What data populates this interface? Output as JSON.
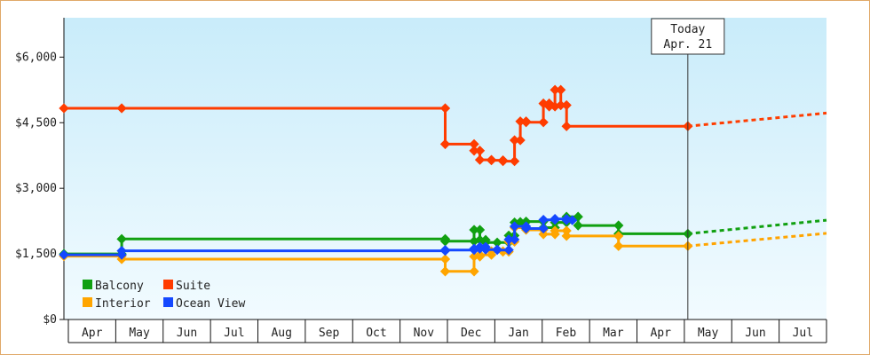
{
  "colors": {
    "background_top": "#c9ecfa",
    "background_bottom": "#f2fbff",
    "border": "#e0a868",
    "Balcony": "#11a011",
    "Suite": "#ff3c00",
    "Interior": "#ffa500",
    "Ocean View": "#1448ff"
  },
  "today": {
    "line1": "Today",
    "line2": "Apr. 21",
    "value": 2022.31
  },
  "chart_data": {
    "type": "line",
    "x_unit": "fractional year",
    "xlim": [
      2021.23,
      2022.55
    ],
    "ylim": [
      0,
      6900
    ],
    "yticks": [
      0,
      1500,
      3000,
      4500,
      6000
    ],
    "ytick_labels": [
      "$0",
      "$1,500",
      "$3,000",
      "$4,500",
      "$6,000"
    ],
    "xtick_labels": [
      "Apr",
      "May",
      "Jun",
      "Jul",
      "Aug",
      "Sep",
      "Oct",
      "Nov",
      "Dec",
      "Jan",
      "Feb",
      "Mar",
      "Apr",
      "May",
      "Jun",
      "Jul"
    ],
    "grid": false,
    "legend_position": "bottom-left",
    "step": true,
    "series": [
      {
        "name": "Balcony",
        "points": [
          [
            2021.23,
            1500
          ],
          [
            2021.33,
            1500
          ],
          [
            2021.33,
            1840
          ],
          [
            2021.89,
            1840
          ],
          [
            2021.89,
            1790
          ],
          [
            2021.94,
            1790
          ],
          [
            2021.94,
            2050
          ],
          [
            2021.95,
            2050
          ],
          [
            2021.95,
            1820
          ],
          [
            2021.96,
            1820
          ],
          [
            2021.96,
            1760
          ],
          [
            2021.98,
            1760
          ],
          [
            2021.98,
            1760
          ],
          [
            2022.0,
            1760
          ],
          [
            2022.0,
            1920
          ],
          [
            2022.01,
            1920
          ],
          [
            2022.01,
            2220
          ],
          [
            2022.02,
            2220
          ],
          [
            2022.02,
            2230
          ],
          [
            2022.03,
            2230
          ],
          [
            2022.03,
            2240
          ],
          [
            2022.06,
            2240
          ],
          [
            2022.06,
            2100
          ],
          [
            2022.08,
            2100
          ],
          [
            2022.08,
            2220
          ],
          [
            2022.1,
            2220
          ],
          [
            2022.1,
            2350
          ],
          [
            2022.12,
            2350
          ],
          [
            2022.12,
            2150
          ],
          [
            2022.19,
            2150
          ],
          [
            2022.19,
            1960
          ],
          [
            2022.31,
            1960
          ]
        ],
        "forecast": [
          [
            2022.31,
            1960
          ],
          [
            2022.55,
            2270
          ]
        ]
      },
      {
        "name": "Suite",
        "points": [
          [
            2021.23,
            4830
          ],
          [
            2021.33,
            4830
          ],
          [
            2021.89,
            4830
          ],
          [
            2021.89,
            4010
          ],
          [
            2021.94,
            4010
          ],
          [
            2021.94,
            3860
          ],
          [
            2021.95,
            3860
          ],
          [
            2021.95,
            3650
          ],
          [
            2021.97,
            3650
          ],
          [
            2021.97,
            3640
          ],
          [
            2021.99,
            3640
          ],
          [
            2021.99,
            3620
          ],
          [
            2022.01,
            3620
          ],
          [
            2022.01,
            4100
          ],
          [
            2022.02,
            4100
          ],
          [
            2022.02,
            4530
          ],
          [
            2022.03,
            4530
          ],
          [
            2022.03,
            4510
          ],
          [
            2022.06,
            4510
          ],
          [
            2022.06,
            4940
          ],
          [
            2022.07,
            4940
          ],
          [
            2022.07,
            4870
          ],
          [
            2022.08,
            4870
          ],
          [
            2022.08,
            5250
          ],
          [
            2022.09,
            5250
          ],
          [
            2022.09,
            4900
          ],
          [
            2022.1,
            4900
          ],
          [
            2022.1,
            4420
          ],
          [
            2022.31,
            4420
          ]
        ],
        "forecast": [
          [
            2022.31,
            4420
          ],
          [
            2022.55,
            4720
          ]
        ]
      },
      {
        "name": "Interior",
        "points": [
          [
            2021.23,
            1450
          ],
          [
            2021.33,
            1450
          ],
          [
            2021.33,
            1380
          ],
          [
            2021.89,
            1380
          ],
          [
            2021.89,
            1100
          ],
          [
            2021.94,
            1100
          ],
          [
            2021.94,
            1440
          ],
          [
            2021.95,
            1440
          ],
          [
            2021.95,
            1480
          ],
          [
            2021.97,
            1480
          ],
          [
            2021.97,
            1560
          ],
          [
            2021.99,
            1560
          ],
          [
            2021.99,
            1550
          ],
          [
            2022.0,
            1550
          ],
          [
            2022.0,
            1780
          ],
          [
            2022.01,
            1780
          ],
          [
            2022.01,
            2100
          ],
          [
            2022.03,
            2100
          ],
          [
            2022.03,
            2050
          ],
          [
            2022.06,
            2050
          ],
          [
            2022.06,
            1950
          ],
          [
            2022.08,
            1950
          ],
          [
            2022.08,
            2030
          ],
          [
            2022.1,
            2030
          ],
          [
            2022.1,
            1910
          ],
          [
            2022.19,
            1910
          ],
          [
            2022.19,
            1680
          ],
          [
            2022.31,
            1680
          ]
        ],
        "forecast": [
          [
            2022.31,
            1680
          ],
          [
            2022.55,
            1970
          ]
        ]
      },
      {
        "name": "Ocean View",
        "points": [
          [
            2021.23,
            1480
          ],
          [
            2021.33,
            1480
          ],
          [
            2021.33,
            1570
          ],
          [
            2021.89,
            1570
          ],
          [
            2021.89,
            1590
          ],
          [
            2021.94,
            1590
          ],
          [
            2021.94,
            1620
          ],
          [
            2021.95,
            1620
          ],
          [
            2021.95,
            1660
          ],
          [
            2021.96,
            1660
          ],
          [
            2021.96,
            1600
          ],
          [
            2021.98,
            1600
          ],
          [
            2021.98,
            1590
          ],
          [
            2022.0,
            1590
          ],
          [
            2022.0,
            1830
          ],
          [
            2022.01,
            1830
          ],
          [
            2022.01,
            2130
          ],
          [
            2022.03,
            2130
          ],
          [
            2022.03,
            2080
          ],
          [
            2022.06,
            2080
          ],
          [
            2022.06,
            2280
          ],
          [
            2022.08,
            2280
          ],
          [
            2022.08,
            2300
          ],
          [
            2022.1,
            2300
          ],
          [
            2022.1,
            2270
          ],
          [
            2022.11,
            2270
          ]
        ],
        "forecast": []
      }
    ]
  }
}
